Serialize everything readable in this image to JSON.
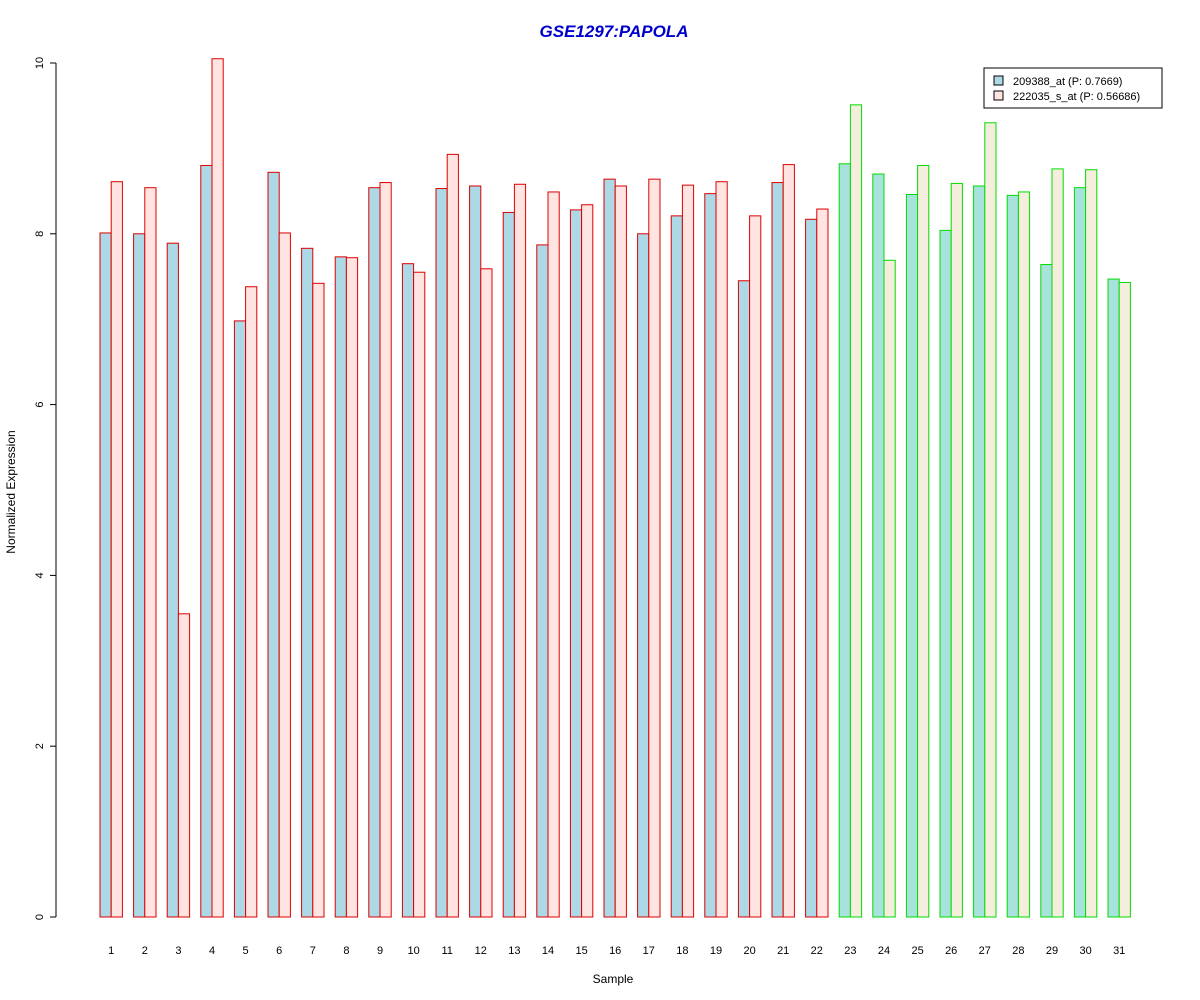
{
  "chart_data": {
    "type": "bar",
    "title": "GSE1297:PAPOLA",
    "xlabel": "Sample",
    "ylabel": "Normalized Expression",
    "ylim": [
      0,
      10
    ],
    "yticks": [
      "0",
      "2",
      "4",
      "6",
      "8",
      "10"
    ],
    "legend_position": "top-right",
    "grid": false,
    "categories": [
      "1",
      "2",
      "3",
      "4",
      "5",
      "6",
      "7",
      "8",
      "9",
      "10",
      "11",
      "12",
      "13",
      "14",
      "15",
      "16",
      "17",
      "18",
      "19",
      "20",
      "21",
      "22",
      "23",
      "24",
      "25",
      "26",
      "27",
      "28",
      "29",
      "30",
      "31"
    ],
    "groups": [
      {
        "range": [
          1,
          22
        ],
        "border_color": "#dd0000",
        "series_fill": [
          "#add8e6",
          "#ffe4e1"
        ]
      },
      {
        "range": [
          23,
          31
        ],
        "border_color": "#00dd00",
        "series_fill": [
          "#a8e2dc",
          "#f5eedc"
        ]
      }
    ],
    "series": [
      {
        "name": "209388_at (P: 0.7669)",
        "legend_fill": "#add8e6",
        "values": [
          8.01,
          8.0,
          7.89,
          8.8,
          6.98,
          8.72,
          7.83,
          7.73,
          8.54,
          7.65,
          8.53,
          8.56,
          8.25,
          7.87,
          8.28,
          8.64,
          8.0,
          8.21,
          8.47,
          7.45,
          8.6,
          8.17,
          8.82,
          8.7,
          8.46,
          8.04,
          8.56,
          8.45,
          7.64,
          8.54,
          7.47
        ]
      },
      {
        "name": "222035_s_at (P: 0.56686)",
        "legend_fill": "#ffe4e1",
        "values": [
          8.61,
          8.54,
          3.55,
          10.05,
          7.38,
          8.01,
          7.42,
          7.72,
          8.6,
          7.55,
          8.93,
          7.59,
          8.58,
          8.49,
          8.34,
          8.56,
          8.64,
          8.57,
          8.61,
          8.21,
          8.81,
          8.29,
          9.51,
          7.69,
          8.8,
          8.59,
          9.3,
          8.49,
          8.76,
          8.75,
          7.43
        ]
      }
    ]
  }
}
